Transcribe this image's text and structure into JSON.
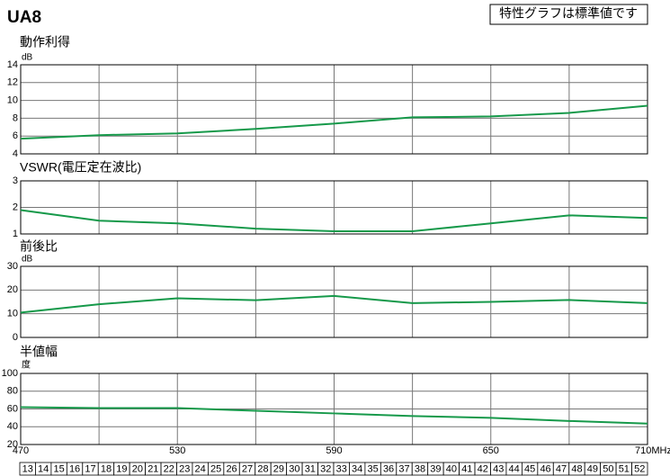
{
  "header": {
    "title": "UA8",
    "note": "特性グラフは標準値です"
  },
  "chart_data": [
    {
      "type": "line",
      "title": "動作利得",
      "y_unit": "dB",
      "color": "#16994a",
      "x": [
        470,
        500,
        530,
        560,
        590,
        620,
        650,
        680,
        710
      ],
      "xlim": [
        470,
        710
      ],
      "values": [
        5.7,
        6.1,
        6.3,
        6.8,
        7.4,
        8.1,
        8.2,
        8.6,
        9.4
      ],
      "ylim": [
        4,
        14
      ],
      "yticks": [
        4,
        6,
        8,
        10,
        12,
        14
      ],
      "grid": true
    },
    {
      "type": "line",
      "title": "VSWR(電圧定在波比)",
      "color": "#16994a",
      "x": [
        470,
        500,
        530,
        560,
        590,
        620,
        650,
        680,
        710
      ],
      "xlim": [
        470,
        710
      ],
      "values": [
        1.9,
        1.5,
        1.4,
        1.2,
        1.1,
        1.1,
        1.4,
        1.7,
        1.6
      ],
      "ylim": [
        1,
        3
      ],
      "yticks": [
        1,
        2,
        3
      ],
      "grid": true
    },
    {
      "type": "line",
      "title": "前後比",
      "y_unit": "dB",
      "color": "#16994a",
      "x": [
        470,
        500,
        530,
        560,
        590,
        620,
        650,
        680,
        710
      ],
      "xlim": [
        470,
        710
      ],
      "values": [
        10.5,
        14,
        16.5,
        15.7,
        17.5,
        14.5,
        15,
        15.8,
        14.5
      ],
      "ylim": [
        0,
        30
      ],
      "yticks": [
        0,
        10,
        20,
        30
      ],
      "grid": true
    },
    {
      "type": "line",
      "title": "半値幅",
      "y_unit": "度",
      "color": "#16994a",
      "x": [
        470,
        500,
        530,
        560,
        590,
        620,
        650,
        680,
        710
      ],
      "xlim": [
        470,
        710
      ],
      "values": [
        62,
        61,
        61,
        58,
        55,
        52,
        50,
        46.5,
        43.5
      ],
      "ylim": [
        20,
        100
      ],
      "yticks": [
        20,
        40,
        60,
        80,
        100
      ],
      "xticks": [
        470,
        530,
        590,
        650,
        {
          "value": 710,
          "label": "710MHz"
        }
      ],
      "grid": true
    }
  ],
  "channels": [
    13,
    14,
    15,
    16,
    17,
    18,
    19,
    20,
    21,
    22,
    23,
    24,
    25,
    26,
    27,
    28,
    29,
    30,
    31,
    32,
    33,
    34,
    35,
    36,
    37,
    38,
    39,
    40,
    41,
    42,
    43,
    44,
    45,
    46,
    47,
    48,
    49,
    50,
    51,
    52
  ]
}
